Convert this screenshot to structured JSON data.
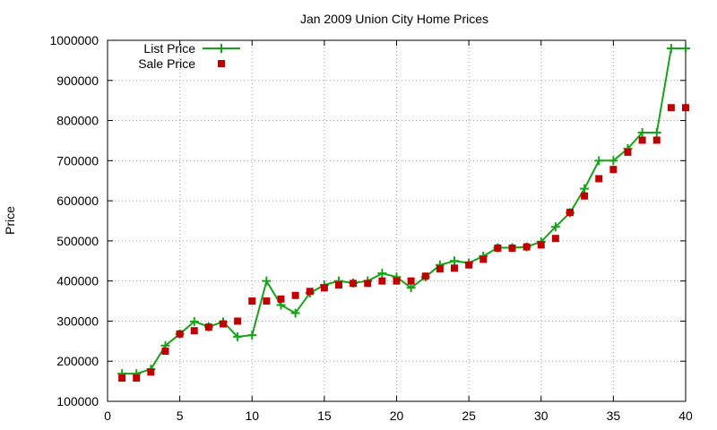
{
  "chart_data": {
    "type": "line",
    "title": "Jan 2009 Union City Home Prices",
    "xlabel": "",
    "ylabel": "Price",
    "xlim": [
      0,
      40
    ],
    "ylim": [
      100000,
      1000000
    ],
    "grid": true,
    "legend_position": "top-left",
    "x_ticks": [
      "0",
      "5",
      "10",
      "15",
      "20",
      "25",
      "30",
      "35",
      "40"
    ],
    "y_ticks": [
      "100000",
      "200000",
      "300000",
      "400000",
      "500000",
      "600000",
      "700000",
      "800000",
      "900000",
      "1000000"
    ],
    "series": [
      {
        "name": "List Price",
        "style": "lines-with-plus-markers",
        "color": "#17a317",
        "x": [
          1,
          2,
          3,
          4,
          5,
          6,
          7,
          8,
          9,
          10,
          11,
          12,
          13,
          14,
          15,
          16,
          17,
          18,
          19,
          20,
          21,
          22,
          23,
          24,
          25,
          26,
          27,
          28,
          29,
          30,
          31,
          32,
          33,
          34,
          35,
          36,
          37,
          38,
          39,
          40
        ],
        "values": [
          169000,
          169000,
          180000,
          239000,
          268000,
          299000,
          286000,
          298000,
          261000,
          265000,
          400000,
          340000,
          320000,
          370000,
          390000,
          400000,
          395000,
          400000,
          419000,
          410000,
          383000,
          410000,
          440000,
          450000,
          445000,
          462000,
          483000,
          483000,
          485000,
          498000,
          535000,
          570000,
          630000,
          700000,
          700000,
          730000,
          770000,
          770000,
          980000,
          980000
        ]
      },
      {
        "name": "Sale Price",
        "style": "points-filled-square",
        "color": "#c00000",
        "x": [
          1,
          2,
          3,
          4,
          5,
          6,
          7,
          8,
          9,
          10,
          11,
          12,
          13,
          14,
          15,
          16,
          17,
          18,
          19,
          20,
          21,
          22,
          23,
          24,
          25,
          26,
          27,
          28,
          29,
          30,
          31,
          32,
          33,
          34,
          35,
          36,
          37,
          38,
          39,
          40
        ],
        "values": [
          158000,
          158000,
          173000,
          225000,
          268000,
          276000,
          285000,
          293000,
          300000,
          350000,
          350000,
          355000,
          364000,
          374000,
          383000,
          390000,
          394000,
          394000,
          400000,
          400000,
          400000,
          412000,
          430000,
          432000,
          440000,
          454000,
          482000,
          482000,
          485000,
          490000,
          506000,
          571000,
          612000,
          655000,
          678000,
          721000,
          751000,
          751000,
          832000,
          832000
        ]
      }
    ]
  }
}
